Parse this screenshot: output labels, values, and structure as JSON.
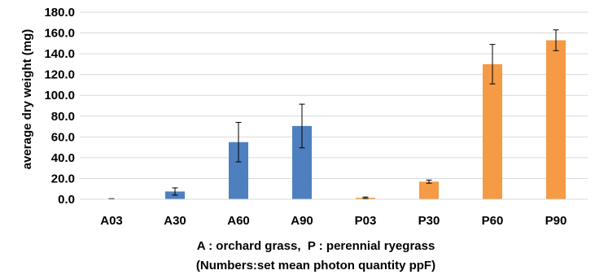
{
  "chart_data": {
    "type": "bar",
    "categories": [
      "A03",
      "A30",
      "A60",
      "A90",
      "P03",
      "P30",
      "P60",
      "P90"
    ],
    "values": [
      0.3,
      7.5,
      55.0,
      70.5,
      1.5,
      17.0,
      130.0,
      153.0
    ],
    "errors": [
      0.3,
      3.5,
      19.0,
      21.0,
      0.7,
      1.5,
      19.0,
      10.0
    ],
    "bar_colors": [
      "#4e80c0",
      "#4e80c0",
      "#4e80c0",
      "#4e80c0",
      "#f59a45",
      "#f59a45",
      "#f59a45",
      "#f59a45"
    ],
    "ylabel": "average dry weight (mg)",
    "ylim": [
      0,
      180
    ],
    "ytick_step": 20,
    "ytick_labels": [
      "0.0",
      "20.0",
      "40.0",
      "60.0",
      "80.0",
      "100.0",
      "120.0",
      "140.0",
      "160.0",
      "180.0"
    ],
    "grid": true,
    "caption_line1": "A : orchard grass,  P : perennial ryegrass",
    "caption_line2": "(Numbers:set mean photon quantity ppF)"
  }
}
